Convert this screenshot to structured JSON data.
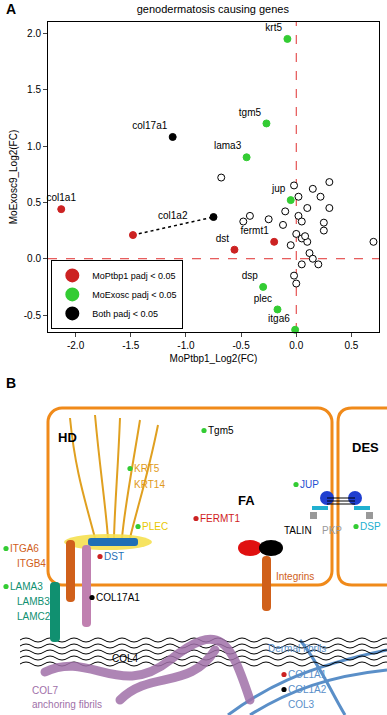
{
  "panel_labels": [
    "A",
    "B"
  ],
  "chart_data": {
    "type": "scatter",
    "title": "genodermatosis causing genes",
    "x_label": "MoPtbp1_Log2(FC)",
    "y_label": "MoExosc9_Log2(FC)",
    "xlim": [
      -2.25,
      0.75
    ],
    "xticks": [
      {
        "value": -2,
        "label": "-2.0"
      },
      -1.5,
      {
        "value": -1,
        "label": "-1.0"
      },
      -0.5,
      {
        "value": 0,
        "label": "0.0"
      },
      0.5
    ],
    "ylim": [
      -0.65,
      2.1
    ],
    "yticks": [
      -0.5,
      {
        "value": 0,
        "label": "0.0"
      },
      0.5,
      {
        "value": 1,
        "label": "1.0"
      },
      1.5,
      {
        "value": 2,
        "label": "2.0"
      }
    ],
    "grid": false,
    "legend": "lower left",
    "ref_lines": [
      {
        "axis": "x",
        "value": 0,
        "color": "#e03030"
      },
      {
        "axis": "y",
        "value": 0,
        "color": "#e03030"
      }
    ],
    "series": [
      {
        "color": "#ffffff",
        "marker": "open circle",
        "x": [
          -0.68,
          -0.48,
          -0.42,
          -0.25,
          -0.12,
          -0.02,
          0.02,
          0.1,
          0.15,
          0.22,
          0.25,
          0.3,
          0.3,
          0.25,
          0.02,
          0.05,
          0.0,
          0.05,
          -0.05,
          0.1,
          0.12,
          0.15,
          0.2,
          0.05,
          -0.02,
          0.0,
          0.08,
          0.7,
          -0.1
        ],
        "y": [
          0.72,
          0.33,
          0.38,
          0.35,
          0.3,
          0.65,
          0.55,
          0.45,
          0.62,
          0.55,
          0.32,
          0.68,
          0.45,
          0.25,
          0.38,
          0.33,
          0.22,
          0.18,
          0.12,
          0.15,
          0.05,
          0.0,
          -0.05,
          -0.05,
          -0.15,
          -0.22,
          0.2,
          0.15,
          0.42
        ]
      },
      {
        "name": "MoPtbp1 padj < 0.05",
        "color": "#cc2222",
        "marker": "circle",
        "x": [
          -2.13,
          -1.48,
          -0.2,
          -0.56
        ],
        "y": [
          0.44,
          0.21,
          0.15,
          0.08
        ],
        "labels": [
          "col1a1",
          null,
          "fermt1",
          "dst"
        ]
      },
      {
        "name": "MoExosc padj < 0.05",
        "color": "#33cc33",
        "marker": "circle",
        "x": [
          -0.08,
          -0.27,
          -0.45,
          -0.05,
          -0.3,
          -0.17,
          -0.01
        ],
        "y": [
          1.95,
          1.2,
          0.9,
          0.52,
          -0.25,
          -0.45,
          -0.63
        ],
        "labels": [
          "krt5",
          "tgm5",
          "lama3",
          "jup",
          "dsp",
          "plec",
          "itga6"
        ]
      },
      {
        "name": "Both padj < 0.05",
        "color": "#000000",
        "marker": "circle",
        "x": [
          -1.12,
          -0.75
        ],
        "y": [
          1.08,
          0.37
        ],
        "labels": [
          "col17a1",
          null
        ]
      }
    ],
    "pairs": [
      {
        "label": "col1a2",
        "x": [
          -1.48,
          -0.75
        ],
        "y": [
          0.21,
          0.37
        ],
        "line_style": "dotted"
      }
    ]
  },
  "diagram": {
    "labels": [
      {
        "text": "HD",
        "color": "#000000",
        "weight": "bold"
      },
      {
        "text": "FA",
        "color": "#000000",
        "weight": "bold"
      },
      {
        "text": "DES",
        "color": "#000000",
        "weight": "bold"
      },
      {
        "text": "KRT5",
        "color": "#e09a1a",
        "dot": "#33cc33"
      },
      {
        "text": "KRT14",
        "color": "#e09a1a"
      },
      {
        "text": "PLEC",
        "color": "#e8c800",
        "dot": "#33cc33"
      },
      {
        "text": "DST",
        "color": "#1f6fb5",
        "dot": "#cc2222"
      },
      {
        "text": "ITGA6",
        "color": "#d0601a",
        "dot": "#33cc33"
      },
      {
        "text": "ITGB4",
        "color": "#d0601a"
      },
      {
        "text": "LAMA3",
        "color": "#109070",
        "dot": "#33cc33"
      },
      {
        "text": "LAMB3",
        "color": "#109070"
      },
      {
        "text": "LAMC2",
        "color": "#109070"
      },
      {
        "text": "COL17A1",
        "color": "#000000",
        "dot": "#000000"
      },
      {
        "text": "Tgm5",
        "color": "#000000",
        "dot": "#33cc33"
      },
      {
        "text": "FERMT1",
        "color": "#d01c1c",
        "dot": "#cc2222"
      },
      {
        "text": "TALIN",
        "color": "#000000"
      },
      {
        "text": "Integrins",
        "color": "#d0601a"
      },
      {
        "text": "JUP",
        "color": "#1f4fd0",
        "dot": "#33cc33"
      },
      {
        "text": "DSP",
        "color": "#20b0d0",
        "dot": "#33cc33"
      },
      {
        "text": "PKP",
        "color": "#999999"
      },
      {
        "text": "COL4",
        "color": "#000000"
      },
      {
        "text": "COL7",
        "color": "#a070a8"
      },
      {
        "text": "anchoring fibrils",
        "color": "#a070a8"
      },
      {
        "text": "Dermal fibrils",
        "color": "#5a8fc8"
      },
      {
        "text": "COL1A1",
        "color": "#5a8fc8",
        "dot": "#cc2222"
      },
      {
        "text": "COL1A2",
        "color": "#5a8fc8",
        "dot": "#000000"
      },
      {
        "text": "COL3",
        "color": "#5a8fc8"
      }
    ]
  }
}
